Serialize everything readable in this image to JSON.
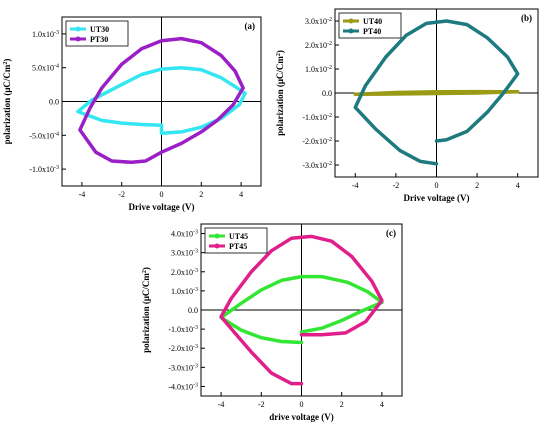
{
  "chart_data": [
    {
      "type": "line",
      "panel_label": "(a)",
      "xlabel": "Drive voltage (V)",
      "ylabel": "polarization (μC/Cm²)",
      "xlim": [
        -5,
        5
      ],
      "ylim": [
        -1.25,
        1.25
      ],
      "y_exponent": -3,
      "xticks": [
        -4,
        -2,
        0,
        2,
        4
      ],
      "xtick_labels": [
        "-4",
        "-2",
        "0",
        "2",
        "4"
      ],
      "yticks": [
        -1.0,
        -0.5,
        0.0,
        0.5,
        1.0
      ],
      "ytick_labels": [
        "-1.0x10⁻³",
        "-5.0x10⁻⁴",
        "0.0",
        "5.0x10⁻⁴",
        "1.0x10⁻³"
      ],
      "grid": false,
      "legend_position": "top-left",
      "series": [
        {
          "name": "UT30",
          "color": "#33e6f2",
          "points": [
            [
              0,
              -0.35
            ],
            [
              -1,
              -0.34
            ],
            [
              -2,
              -0.32
            ],
            [
              -3,
              -0.28
            ],
            [
              -4.2,
              -0.15
            ],
            [
              -3.5,
              0.02
            ],
            [
              -2,
              0.25
            ],
            [
              -1,
              0.4
            ],
            [
              0,
              0.48
            ],
            [
              1,
              0.5
            ],
            [
              2,
              0.47
            ],
            [
              3,
              0.35
            ],
            [
              3.7,
              0.22
            ],
            [
              4.2,
              0.12
            ],
            [
              3.9,
              -0.05
            ],
            [
              3,
              -0.25
            ],
            [
              2,
              -0.38
            ],
            [
              1,
              -0.45
            ],
            [
              0,
              -0.47
            ],
            [
              0,
              -0.35
            ]
          ]
        },
        {
          "name": "PT30",
          "color": "#9b1fc6",
          "points": [
            [
              0,
              -0.75
            ],
            [
              -0.8,
              -0.88
            ],
            [
              -1.5,
              -0.9
            ],
            [
              -2.5,
              -0.88
            ],
            [
              -3.3,
              -0.75
            ],
            [
              -4.1,
              -0.42
            ],
            [
              -3.6,
              -0.1
            ],
            [
              -3,
              0.2
            ],
            [
              -2,
              0.55
            ],
            [
              -1,
              0.78
            ],
            [
              0,
              0.9
            ],
            [
              1,
              0.93
            ],
            [
              2,
              0.87
            ],
            [
              3,
              0.68
            ],
            [
              3.7,
              0.45
            ],
            [
              4.1,
              0.2
            ],
            [
              3.6,
              -0.05
            ],
            [
              2.8,
              -0.28
            ],
            [
              2,
              -0.45
            ],
            [
              1,
              -0.62
            ],
            [
              0,
              -0.75
            ]
          ]
        }
      ]
    },
    {
      "type": "line",
      "panel_label": "(b)",
      "xlabel": "Drive voltage (V)",
      "ylabel": "polarization (μC/Cm²)",
      "xlim": [
        -5,
        5
      ],
      "ylim": [
        -3.5,
        3.5
      ],
      "y_exponent": -2,
      "xticks": [
        -4,
        -2,
        0,
        2,
        4
      ],
      "xtick_labels": [
        "-4",
        "-2",
        "0",
        "2",
        "4"
      ],
      "yticks": [
        -3,
        -2,
        -1,
        0,
        1,
        2,
        3
      ],
      "ytick_labels": [
        "-3.0x10⁻²",
        "-2.0x10⁻²",
        "-1.0x10⁻²",
        "0.0",
        "1.0x10⁻²",
        "2.0x10⁻²",
        "3.0x10⁻²"
      ],
      "grid": false,
      "legend_position": "top-left",
      "series": [
        {
          "name": "UT40",
          "color": "#9a9a14",
          "points": [
            [
              -4,
              -0.05
            ],
            [
              -2,
              -0.04
            ],
            [
              0,
              -0.02
            ],
            [
              2,
              0.0
            ],
            [
              4,
              0.05
            ],
            [
              2,
              0.06
            ],
            [
              0,
              0.05
            ],
            [
              -2,
              0.02
            ],
            [
              -4,
              -0.05
            ]
          ]
        },
        {
          "name": "PT40",
          "color": "#1d7a7f",
          "points": [
            [
              0,
              -2.95
            ],
            [
              -0.8,
              -2.85
            ],
            [
              -1.8,
              -2.4
            ],
            [
              -3,
              -1.5
            ],
            [
              -4,
              -0.6
            ],
            [
              -3.5,
              0.3
            ],
            [
              -2.5,
              1.5
            ],
            [
              -1.5,
              2.4
            ],
            [
              -0.5,
              2.9
            ],
            [
              0.5,
              3.0
            ],
            [
              1.5,
              2.85
            ],
            [
              2.5,
              2.3
            ],
            [
              3.5,
              1.5
            ],
            [
              4,
              0.8
            ],
            [
              3.3,
              0.0
            ],
            [
              2.5,
              -0.8
            ],
            [
              1.5,
              -1.6
            ],
            [
              0.5,
              -1.95
            ],
            [
              0,
              -2.0
            ]
          ]
        }
      ]
    },
    {
      "type": "line",
      "panel_label": "(c)",
      "xlabel": "drive voltage (V)",
      "ylabel": "polarization (μC/Cm²)",
      "xlim": [
        -5,
        5
      ],
      "ylim": [
        -4.5,
        4.5
      ],
      "y_exponent": -3,
      "xticks": [
        -4,
        -2,
        0,
        2,
        4
      ],
      "xtick_labels": [
        "-4",
        "-2",
        "0",
        "2",
        "4"
      ],
      "yticks": [
        -4,
        -3,
        -2,
        -1,
        0,
        1,
        2,
        3,
        4
      ],
      "ytick_labels": [
        "-4.0x10⁻³",
        "-3.0x10⁻³",
        "-2.0x10⁻³",
        "-1.0x10⁻³",
        "0.0",
        "1.0x10⁻³",
        "2.0x10⁻³",
        "3.0x10⁻³",
        "4.0x10⁻³"
      ],
      "grid": false,
      "legend_position": "top-left",
      "series": [
        {
          "name": "UT45",
          "color": "#33e633",
          "points": [
            [
              0,
              -1.15
            ],
            [
              1,
              -0.95
            ],
            [
              2,
              -0.55
            ],
            [
              3,
              -0.05
            ],
            [
              4,
              0.4
            ],
            [
              3.3,
              0.95
            ],
            [
              2.3,
              1.45
            ],
            [
              1,
              1.75
            ],
            [
              0,
              1.75
            ],
            [
              -1,
              1.55
            ],
            [
              -2,
              1.05
            ],
            [
              -3,
              0.35
            ],
            [
              -4,
              -0.4
            ],
            [
              -3,
              -1.05
            ],
            [
              -2,
              -1.45
            ],
            [
              -1,
              -1.65
            ],
            [
              0,
              -1.7
            ]
          ]
        },
        {
          "name": "PT45",
          "color": "#e01f8a",
          "points": [
            [
              0,
              -3.85
            ],
            [
              -0.5,
              -3.85
            ],
            [
              -1.5,
              -3.3
            ],
            [
              -2.5,
              -2.2
            ],
            [
              -3.4,
              -1.1
            ],
            [
              -4,
              -0.35
            ],
            [
              -3.5,
              0.6
            ],
            [
              -2.5,
              2.0
            ],
            [
              -1.5,
              3.1
            ],
            [
              -0.5,
              3.75
            ],
            [
              0.5,
              3.85
            ],
            [
              1.5,
              3.6
            ],
            [
              2.5,
              2.8
            ],
            [
              3.5,
              1.5
            ],
            [
              4,
              0.5
            ],
            [
              3.2,
              -0.6
            ],
            [
              2.2,
              -1.2
            ],
            [
              1,
              -1.3
            ],
            [
              0,
              -1.3
            ]
          ]
        }
      ]
    }
  ]
}
